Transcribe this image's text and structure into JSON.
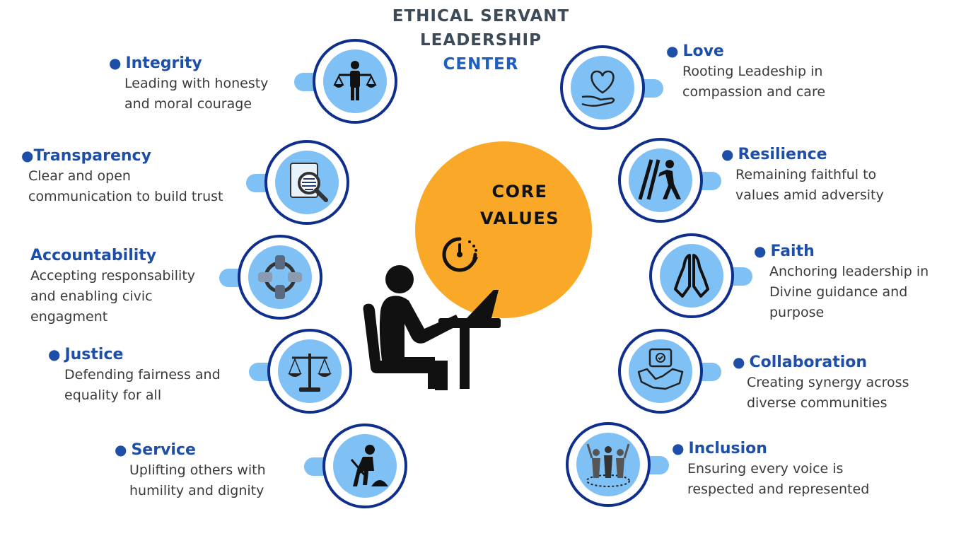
{
  "title": {
    "line1": "ETHICAL SERVANT",
    "line2": "LEADERSHIP",
    "line3": "CENTER"
  },
  "core": {
    "line1": "CORE",
    "line2": "VALUES"
  },
  "colors": {
    "accent_orange": "#f9a927",
    "ring_navy": "#0f2f8c",
    "icon_fill": "#7fc0f5",
    "heading_blue": "#1e4fa8"
  },
  "values_left": [
    {
      "title": "Integrity",
      "desc": "Leading with honesty\nand moral courage",
      "icon": "scales-person-icon"
    },
    {
      "title": "Transparency",
      "desc": "Clear and open\ncommunication to build trust",
      "icon": "document-magnifier-icon"
    },
    {
      "title": "Accountability",
      "desc": "Accepting responsability\nand enabling civic\nengagment",
      "icon": "hands-circle-icon"
    },
    {
      "title": "Justice",
      "desc": "Defending fairness and\nequality for all",
      "icon": "justice-scale-icon"
    },
    {
      "title": "Service",
      "desc": "Uplifting others with\nhumility and dignity",
      "icon": "worker-shovel-icon"
    }
  ],
  "values_right": [
    {
      "title": "Love",
      "desc": "Rooting  Leadeship  in\ncompassion and care",
      "icon": "heart-hand-icon"
    },
    {
      "title": "Resilience",
      "desc": "Remaining  faithful  to\nvalues amid adversity",
      "icon": "pushing-wall-icon"
    },
    {
      "title": "Faith",
      "desc": "Anchoring leadership in\nDivine guidance and\npurpose",
      "icon": "praying-hands-icon"
    },
    {
      "title": "Collaboration",
      "desc": "Creating synergy across\ndiverse communities",
      "icon": "handshake-icon"
    },
    {
      "title": "Inclusion",
      "desc": "Ensuring every voice is\nrespected and represented",
      "icon": "group-people-icon"
    }
  ]
}
